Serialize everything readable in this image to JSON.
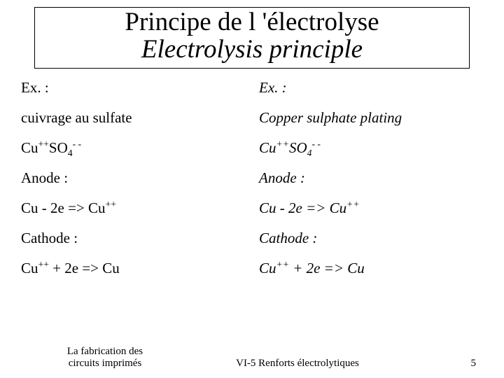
{
  "title": {
    "fr": "Principe de l 'électrolyse",
    "en": "Electrolysis principle"
  },
  "left": {
    "l1": "Ex. :",
    "l2": "cuivrage au sulfate",
    "l3_pre": " Cu",
    "l3_sup1": "++",
    "l3_mid": "SO",
    "l3_sub": "4",
    "l3_sup2": "- -",
    "l4": "Anode :",
    "l5_a": "Cu - 2e => Cu",
    "l5_sup": "++",
    "l6": "Cathode :",
    "l7_a": "Cu",
    "l7_sup": "++",
    "l7_b": " + 2e => Cu"
  },
  "right": {
    "l1": "Ex. :",
    "l2": "Copper sulphate  plating",
    "l3_pre": "Cu",
    "l3_sup1": "++",
    "l3_mid": "SO",
    "l3_sub": "4",
    "l3_sup2": "- -",
    "l4": "Anode :",
    "l5_a": "Cu - 2e => Cu",
    "l5_sup": "++",
    "l6": "Cathode :",
    "l7_a": "Cu",
    "l7_sup": "++",
    "l7_b": " + 2e => Cu"
  },
  "footer": {
    "left_line1": "La fabrication des",
    "left_line2": "circuits imprimés",
    "center": "VI-5   Renforts électrolytiques",
    "page": "5"
  }
}
